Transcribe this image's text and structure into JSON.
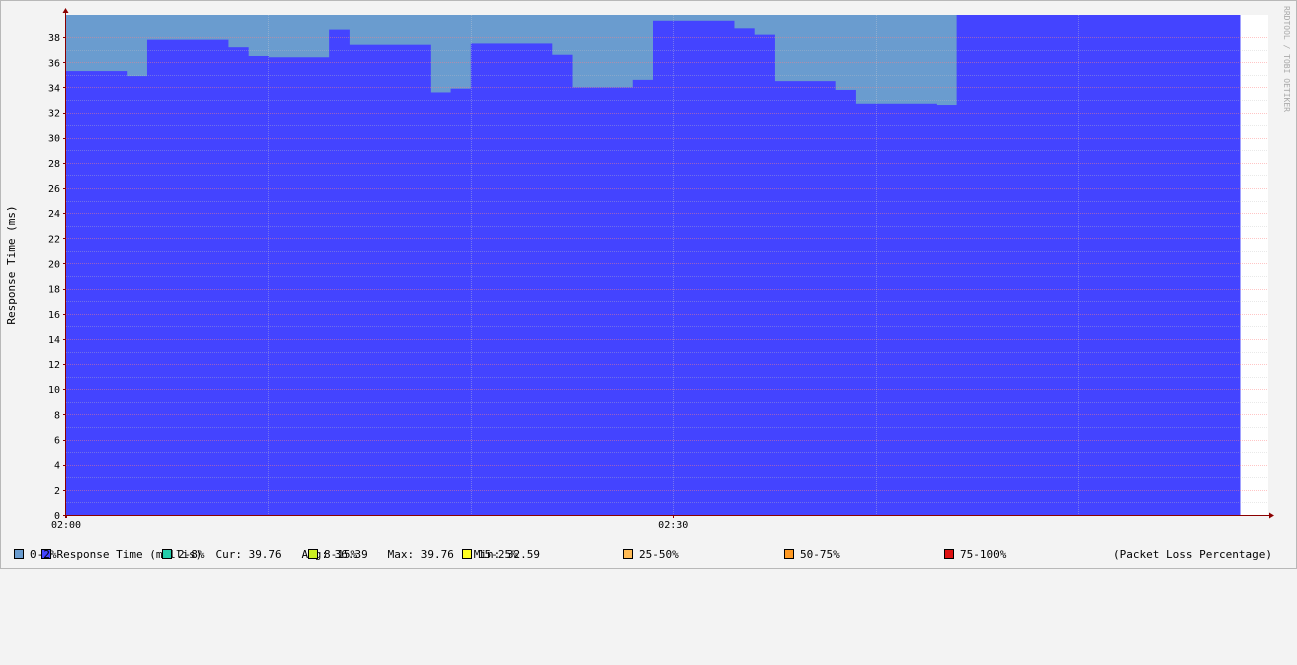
{
  "chart_data": {
    "type": "area",
    "ylabel": "Response Time (ms)",
    "watermark": "RRDTOOL / TOBI OETIKER",
    "ylim": [
      0,
      39.76
    ],
    "yticks": [
      "0",
      "2",
      "4",
      "6",
      "8",
      "10",
      "12",
      "14",
      "16",
      "18",
      "20",
      "22",
      "24",
      "26",
      "28",
      "30",
      "32",
      "34",
      "36",
      "38"
    ],
    "xticks": [
      "02:00",
      "02:30"
    ],
    "x_start": "02:00",
    "x_end": "02:58",
    "grid": true,
    "series": [
      {
        "name": "Response Time (millis)",
        "x": [
          "02:00",
          "02:03",
          "02:04",
          "02:08",
          "02:09",
          "02:10",
          "02:13",
          "02:14",
          "02:18",
          "02:19",
          "02:20",
          "02:24",
          "02:25",
          "02:28",
          "02:29",
          "02:33",
          "02:34",
          "02:35",
          "02:38",
          "02:39",
          "02:43",
          "02:44",
          "02:48",
          "02:49",
          "02:53",
          "02:54",
          "02:58"
        ],
        "values": [
          35.3,
          34.9,
          37.8,
          37.2,
          36.5,
          36.4,
          38.6,
          37.4,
          33.6,
          33.9,
          37.5,
          36.6,
          34.0,
          34.6,
          39.3,
          38.7,
          38.2,
          34.5,
          33.8,
          32.7,
          32.6,
          39.76,
          39.76,
          39.76,
          39.76,
          39.76,
          39.76
        ]
      },
      {
        "name": "0-2%",
        "values_note": "packet loss band fills to top of graph"
      }
    ]
  },
  "legend": {
    "response": {
      "color": "#4444ff",
      "label": "Response Time (millis)",
      "stats": "Cur: 39.76   Avg: 36.39   Max: 39.76   Min: 32.59"
    },
    "loss_items": [
      {
        "label": "0-2%",
        "color": "#6a9ccf"
      },
      {
        "label": "2-8%",
        "color": "#22ccaa"
      },
      {
        "label": "8-15%",
        "color": "#ccee22"
      },
      {
        "label": "15-25%",
        "color": "#ffff22"
      },
      {
        "label": "25-50%",
        "color": "#ffbb55"
      },
      {
        "label": "50-75%",
        "color": "#ff9922"
      },
      {
        "label": "75-100%",
        "color": "#dd1111"
      }
    ],
    "loss_caption": "(Packet Loss Percentage)"
  },
  "colors": {
    "response": "#4444ff",
    "loss_band": "#6a9ccf",
    "axis": "#8b0000"
  }
}
